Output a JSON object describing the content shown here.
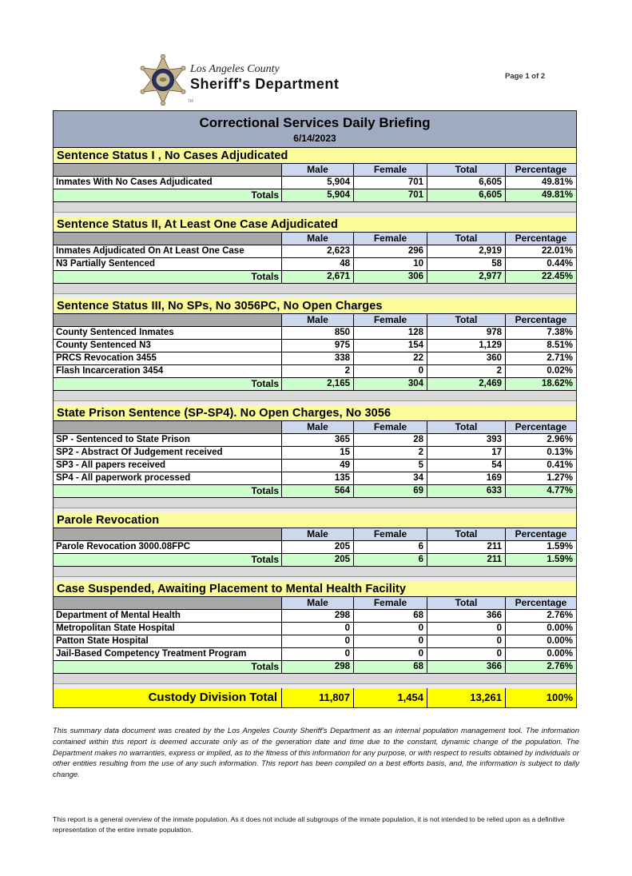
{
  "header": {
    "county": "Los Angeles County",
    "department": "Sheriff's Department",
    "page_indicator": "Page 1 of 2",
    "badge_icon": "sheriff-star-badge",
    "trademark": "TM"
  },
  "report": {
    "title": "Correctional Services Daily Briefing",
    "date": "6/14/2023",
    "columns": [
      "Male",
      "Female",
      "Total",
      "Percentage"
    ],
    "totals_label": "Totals",
    "sections": [
      {
        "title": "Sentence Status I , No Cases Adjudicated",
        "rows": [
          {
            "label": "Inmates With No Cases Adjudicated",
            "male": "5,904",
            "female": "701",
            "total": "6,605",
            "pct": "49.81%"
          }
        ],
        "totals": {
          "male": "5,904",
          "female": "701",
          "total": "6,605",
          "pct": "49.81%"
        }
      },
      {
        "title": "Sentence Status II, At Least One Case Adjudicated",
        "rows": [
          {
            "label": "Inmates Adjudicated On At Least One Case",
            "male": "2,623",
            "female": "296",
            "total": "2,919",
            "pct": "22.01%"
          },
          {
            "label": "N3 Partially Sentenced",
            "male": "48",
            "female": "10",
            "total": "58",
            "pct": "0.44%"
          }
        ],
        "totals": {
          "male": "2,671",
          "female": "306",
          "total": "2,977",
          "pct": "22.45%"
        }
      },
      {
        "title": "Sentence Status III, No SPs, No 3056PC, No Open Charges",
        "rows": [
          {
            "label": "County Sentenced Inmates",
            "male": "850",
            "female": "128",
            "total": "978",
            "pct": "7.38%"
          },
          {
            "label": "County Sentenced N3",
            "male": "975",
            "female": "154",
            "total": "1,129",
            "pct": "8.51%"
          },
          {
            "label": "PRCS Revocation 3455",
            "male": "338",
            "female": "22",
            "total": "360",
            "pct": "2.71%"
          },
          {
            "label": "Flash Incarceration 3454",
            "male": "2",
            "female": "0",
            "total": "2",
            "pct": "0.02%"
          }
        ],
        "totals": {
          "male": "2,165",
          "female": "304",
          "total": "2,469",
          "pct": "18.62%"
        }
      },
      {
        "title": "State Prison Sentence (SP-SP4). No Open Charges, No 3056",
        "rows": [
          {
            "label": "SP - Sentenced to State Prison",
            "male": "365",
            "female": "28",
            "total": "393",
            "pct": "2.96%"
          },
          {
            "label": "SP2 - Abstract Of Judgement received",
            "male": "15",
            "female": "2",
            "total": "17",
            "pct": "0.13%"
          },
          {
            "label": "SP3 - All papers received",
            "male": "49",
            "female": "5",
            "total": "54",
            "pct": "0.41%"
          },
          {
            "label": "SP4 - All paperwork processed",
            "male": "135",
            "female": "34",
            "total": "169",
            "pct": "1.27%"
          }
        ],
        "totals": {
          "male": "564",
          "female": "69",
          "total": "633",
          "pct": "4.77%"
        }
      },
      {
        "title": "Parole Revocation",
        "rows": [
          {
            "label": "Parole Revocation 3000.08FPC",
            "male": "205",
            "female": "6",
            "total": "211",
            "pct": "1.59%"
          }
        ],
        "totals": {
          "male": "205",
          "female": "6",
          "total": "211",
          "pct": "1.59%"
        }
      },
      {
        "title": "Case Suspended, Awaiting Placement to Mental Health Facility",
        "rows": [
          {
            "label": "Department of Mental Health",
            "male": "298",
            "female": "68",
            "total": "366",
            "pct": "2.76%"
          },
          {
            "label": "Metropolitan State Hospital",
            "male": "0",
            "female": "0",
            "total": "0",
            "pct": "0.00%"
          },
          {
            "label": "Patton State Hospital",
            "male": "0",
            "female": "0",
            "total": "0",
            "pct": "0.00%"
          },
          {
            "label": "Jail-Based Competency Treatment Program",
            "male": "0",
            "female": "0",
            "total": "0",
            "pct": "0.00%"
          }
        ],
        "totals": {
          "male": "298",
          "female": "68",
          "total": "366",
          "pct": "2.76%"
        }
      }
    ],
    "grand_total": {
      "label": "Custody Division Total",
      "male": "11,807",
      "female": "1,454",
      "total": "13,261",
      "pct": "100%"
    }
  },
  "footer": {
    "disclaimer": "This summary data document was created by the Los Angeles County Sheriff's Department as an internal population management tool.  The information contained within this report is deemed accurate only as of the generation date and time due to the constant, dynamic change of the population.  The Department makes no warranties, express or implied, as to the fitness of this information for any purpose, or with respect to results obtained by individuals or other entities resulting from the use of any such information.  This report has been compiled on a best efforts basis, and, the information is subject to daily change.",
    "note": "This report is a general overview of the inmate population.  As it does not include all subgroups of the inmate population, it is not intended to be relied upon as a definitive representation of the entire inmate population."
  },
  "colors": {
    "title_bar": "#9FABC0",
    "section_header": "#FBFB9A",
    "column_header": "#CBD8EE",
    "column_header_label": "#A8A8A8",
    "totals_row": "#CCFFCC",
    "grand_total_row": "#FFFF00",
    "filler": "#D9D9D9"
  }
}
